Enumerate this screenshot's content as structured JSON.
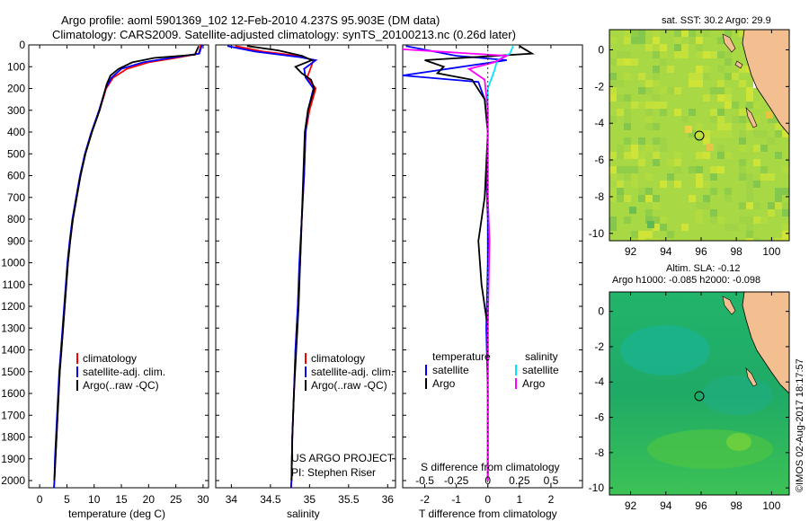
{
  "header": {
    "line1": "Argo profile: aoml 5901369_102 12-Feb-2010 4.237S 95.903E (DM data)",
    "line2": "Climatology: CARS2009. Satellite-adjusted climatology: synTS_20100213.nc (0.26d later)"
  },
  "colors": {
    "climatology": "#ff0000",
    "satellite": "#0000ff",
    "argo": "#000000",
    "sat_salinity": "#00e5ff",
    "argo_salinity": "#ff00ff"
  },
  "chart_data": [
    {
      "type": "line",
      "id": "temperature",
      "xlabel": "temperature (deg C)",
      "xlim": [
        -2,
        31
      ],
      "xticks": [
        0,
        5,
        10,
        15,
        20,
        25,
        30
      ],
      "ylim": [
        2070,
        0
      ],
      "yticks": [
        0,
        100,
        200,
        300,
        400,
        500,
        600,
        700,
        800,
        900,
        1000,
        1100,
        1200,
        1300,
        1400,
        1500,
        1600,
        1700,
        1800,
        1900,
        2000
      ],
      "legend": [
        "climatology",
        "satellite-adj. clim.",
        "Argo(..raw -QC)"
      ],
      "series": [
        {
          "name": "climatology",
          "color": "#ff0000",
          "points": [
            [
              29.6,
              0
            ],
            [
              29.2,
              40
            ],
            [
              25,
              60
            ],
            [
              20,
              80
            ],
            [
              16,
              110
            ],
            [
              13.5,
              150
            ],
            [
              12.2,
              200
            ],
            [
              11,
              300
            ],
            [
              9.6,
              400
            ],
            [
              8.4,
              500
            ],
            [
              7.5,
              600
            ],
            [
              6.8,
              700
            ],
            [
              6.1,
              800
            ],
            [
              5.6,
              900
            ],
            [
              5.2,
              1000
            ],
            [
              4.9,
              1100
            ],
            [
              4.6,
              1200
            ],
            [
              4.3,
              1300
            ],
            [
              4,
              1400
            ],
            [
              3.7,
              1500
            ],
            [
              3.5,
              1600
            ],
            [
              3.3,
              1700
            ],
            [
              3.1,
              1800
            ],
            [
              2.9,
              1900
            ],
            [
              2.7,
              2000
            ],
            [
              2.6,
              2050
            ]
          ]
        },
        {
          "name": "satellite-adj. clim.",
          "color": "#0000ff",
          "points": [
            [
              29.8,
              0
            ],
            [
              29.3,
              40
            ],
            [
              24,
              60
            ],
            [
              19,
              80
            ],
            [
              15,
              110
            ],
            [
              13.2,
              150
            ],
            [
              12.1,
              200
            ],
            [
              10.9,
              300
            ],
            [
              9.5,
              400
            ],
            [
              8.3,
              500
            ],
            [
              7.4,
              600
            ],
            [
              6.7,
              700
            ],
            [
              6,
              800
            ],
            [
              5.5,
              900
            ],
            [
              5.1,
              1000
            ],
            [
              4.8,
              1100
            ],
            [
              4.5,
              1200
            ],
            [
              4.2,
              1300
            ],
            [
              3.9,
              1400
            ],
            [
              3.6,
              1500
            ],
            [
              3.4,
              1600
            ],
            [
              3.2,
              1700
            ],
            [
              3,
              1800
            ],
            [
              2.8,
              1900
            ],
            [
              2.7,
              2000
            ],
            [
              2.6,
              2050
            ]
          ]
        },
        {
          "name": "Argo(..raw -QC)",
          "color": "#000000",
          "points": [
            [
              29.2,
              5
            ],
            [
              28.5,
              45
            ],
            [
              21,
              60
            ],
            [
              17,
              80
            ],
            [
              14.5,
              110
            ],
            [
              13,
              140
            ],
            [
              12.3,
              180
            ],
            [
              11,
              300
            ],
            [
              9.6,
              400
            ],
            [
              8.4,
              500
            ],
            [
              7.5,
              600
            ],
            [
              6.8,
              700
            ],
            [
              6.1,
              800
            ],
            [
              5.6,
              900
            ],
            [
              5.2,
              1000
            ],
            [
              4.9,
              1100
            ],
            [
              4.6,
              1200
            ],
            [
              4.3,
              1300
            ],
            [
              4,
              1400
            ],
            [
              3.7,
              1500
            ],
            [
              3.5,
              1600
            ],
            [
              3.3,
              1700
            ],
            [
              3.1,
              1800
            ],
            [
              2.9,
              1900
            ],
            [
              2.7,
              2000
            ]
          ]
        }
      ]
    },
    {
      "type": "line",
      "id": "salinity",
      "xlabel": "salinity",
      "xlim": [
        33.8,
        36.1
      ],
      "xticks": [
        34,
        34.5,
        35,
        35.5,
        36
      ],
      "ylim": [
        2070,
        0
      ],
      "legend": [
        "climatology",
        "satellite-adj. clim.",
        "Argo(..raw -QC)"
      ],
      "annotation": [
        "US ARGO PROJECT",
        "PI: Stephen Riser"
      ],
      "series": [
        {
          "name": "climatology",
          "color": "#ff0000",
          "points": [
            [
              34.05,
              5
            ],
            [
              34.4,
              30
            ],
            [
              34.85,
              50
            ],
            [
              35.05,
              70
            ],
            [
              35.02,
              100
            ],
            [
              34.97,
              150
            ],
            [
              35.08,
              200
            ],
            [
              35.0,
              300
            ],
            [
              34.95,
              400
            ],
            [
              34.93,
              600
            ],
            [
              34.9,
              800
            ],
            [
              34.88,
              1000
            ],
            [
              34.85,
              1200
            ],
            [
              34.82,
              1400
            ],
            [
              34.8,
              1600
            ],
            [
              34.78,
              1800
            ],
            [
              34.77,
              2000
            ],
            [
              34.76,
              2050
            ]
          ]
        },
        {
          "name": "satellite-adj. clim.",
          "color": "#0000ff",
          "points": [
            [
              33.95,
              5
            ],
            [
              34.3,
              30
            ],
            [
              34.85,
              55
            ],
            [
              35.08,
              70
            ],
            [
              34.93,
              110
            ],
            [
              34.95,
              150
            ],
            [
              35.05,
              200
            ],
            [
              34.98,
              300
            ],
            [
              34.95,
              400
            ],
            [
              34.93,
              600
            ],
            [
              34.9,
              800
            ],
            [
              34.87,
              1000
            ],
            [
              34.85,
              1200
            ],
            [
              34.82,
              1400
            ],
            [
              34.8,
              1600
            ],
            [
              34.78,
              1800
            ],
            [
              34.77,
              2000
            ],
            [
              34.76,
              2050
            ]
          ]
        },
        {
          "name": "Argo(..raw -QC)",
          "color": "#000000",
          "points": [
            [
              34.2,
              5
            ],
            [
              34.6,
              25
            ],
            [
              34.9,
              50
            ],
            [
              35.03,
              70
            ],
            [
              34.82,
              100
            ],
            [
              34.9,
              130
            ],
            [
              35.02,
              160
            ],
            [
              35.06,
              200
            ],
            [
              34.98,
              300
            ],
            [
              34.94,
              400
            ],
            [
              34.92,
              600
            ],
            [
              34.9,
              800
            ],
            [
              34.88,
              1000
            ],
            [
              34.86,
              1200
            ],
            [
              34.83,
              1400
            ],
            [
              34.8,
              1600
            ],
            [
              34.78,
              1800
            ],
            [
              34.77,
              2000
            ]
          ]
        }
      ]
    },
    {
      "type": "line",
      "id": "differences",
      "xlabel": "T difference from climatology",
      "xlabel_top": "S difference from climatology",
      "xlim": [
        -2.7,
        3.0
      ],
      "xticks": [
        -2,
        -1,
        0,
        1,
        2
      ],
      "s_ticks": [
        "-0.5",
        "-0.25",
        "0",
        "0.25",
        "0.5"
      ],
      "ylim": [
        2070,
        0
      ],
      "legend_titles": [
        "temperature",
        "salinity"
      ],
      "legend": [
        "satellite",
        "Argo",
        "satellite",
        "Argo"
      ],
      "series": [
        {
          "name": "temperature satellite",
          "color": "#0000ff",
          "points": [
            [
              -2.6,
              5
            ],
            [
              -1,
              50
            ],
            [
              0.6,
              70
            ],
            [
              -2.7,
              140
            ],
            [
              -0.3,
              170
            ],
            [
              -0.1,
              250
            ],
            [
              0,
              400
            ],
            [
              -0.05,
              600
            ],
            [
              0,
              800
            ],
            [
              0,
              1000
            ],
            [
              -0.05,
              1300
            ],
            [
              0,
              1600
            ],
            [
              0,
              2000
            ]
          ]
        },
        {
          "name": "temperature Argo",
          "color": "#000000",
          "points": [
            [
              1,
              5
            ],
            [
              1.4,
              40
            ],
            [
              -2,
              70
            ],
            [
              -1.4,
              100
            ],
            [
              -1.6,
              130
            ],
            [
              -0.5,
              160
            ],
            [
              -0.1,
              250
            ],
            [
              0,
              400
            ],
            [
              -0.1,
              700
            ],
            [
              -0.3,
              900
            ],
            [
              -0.2,
              1100
            ],
            [
              0,
              1300
            ],
            [
              0,
              1600
            ],
            [
              0,
              2000
            ]
          ]
        },
        {
          "name": "salinity satellite",
          "color": "#00e5ff",
          "points": [
            [
              0.8,
              5
            ],
            [
              0.7,
              40
            ],
            [
              0.3,
              70
            ],
            [
              0.2,
              120
            ],
            [
              0,
              200
            ],
            [
              0,
              400
            ],
            [
              0,
              700
            ],
            [
              0.05,
              900
            ],
            [
              0,
              1200
            ],
            [
              0,
              1600
            ],
            [
              0,
              2000
            ]
          ]
        },
        {
          "name": "salinity Argo",
          "color": "#ff00ff",
          "points": [
            [
              -2.7,
              20
            ],
            [
              0.6,
              50
            ],
            [
              0.2,
              80
            ],
            [
              -0.6,
              110
            ],
            [
              -0.1,
              160
            ],
            [
              0,
              300
            ],
            [
              0,
              700
            ],
            [
              0.05,
              900
            ],
            [
              0,
              1300
            ],
            [
              0,
              1600
            ],
            [
              0,
              2000
            ]
          ]
        }
      ]
    },
    {
      "type": "heatmap",
      "id": "sst-map",
      "title": "sat. SST: 30.2  Argo: 29.9",
      "xlim": [
        90.8,
        101
      ],
      "ylim": [
        -10.4,
        1.1
      ],
      "xticks": [
        92,
        94,
        96,
        98,
        100
      ],
      "yticks": [
        0,
        -2,
        -4,
        -6,
        -8,
        -10
      ],
      "marker": [
        95.9,
        -4.24
      ]
    },
    {
      "type": "heatmap",
      "id": "sla-map",
      "title": "Altim. SLA: -0.12",
      "subtitle": "Argo h1000: -0.085 h2000: -0.098",
      "xlim": [
        90.8,
        101
      ],
      "ylim": [
        -10.4,
        1.1
      ],
      "xticks": [
        92,
        94,
        96,
        98,
        100
      ],
      "yticks": [
        0,
        -2,
        -4,
        -6,
        -8,
        -10
      ],
      "marker": [
        95.9,
        -4.24
      ]
    }
  ],
  "watermark": "©IMOS 02-Aug-2017 18:17:57"
}
